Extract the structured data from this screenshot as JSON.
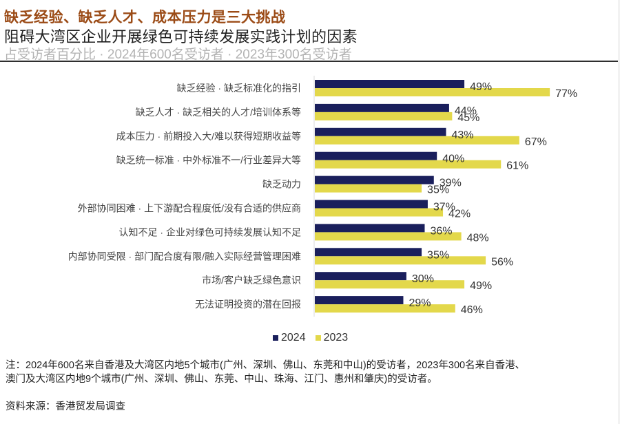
{
  "header": {
    "title": "缺乏经验、缺乏人才、成本压力是三大挑战",
    "subtitle": "阻碍大湾区企业开展绿色可持续发展实践计划的因素",
    "caption": "占受访者百分比 · 2024年600名受访者 · 2023年300名受访者"
  },
  "colors": {
    "title": "#9b4b16",
    "series_2024": "#1a1f5c",
    "series_2023": "#e3d84b",
    "axis": "#d9d9d9"
  },
  "chart_data": {
    "type": "bar",
    "orientation": "horizontal",
    "title": "阻碍大湾区企业开展绿色可持续发展实践计划的因素",
    "xlabel": "",
    "ylabel": "",
    "unit": "%",
    "xlim": [
      0,
      100
    ],
    "grid": false,
    "legend_position": "bottom-center",
    "categories": [
      "缺乏经验 · 缺乏标准化的指引",
      "缺乏人才 · 缺乏相关的人才/培训体系等",
      "成本压力 · 前期投入大/难以获得短期收益等",
      "缺乏统一标准 · 中外标准不一/行业差异大等",
      "缺乏动力",
      "外部协同困难 · 上下游配合程度低/没有合适的供应商",
      "认知不足 · 企业对绿色可持续发展认知不足",
      "内部协同受限 · 部门配合度有限/融入实际经营管理困难",
      "市场/客户缺乏绿色意识",
      "无法证明投资的潜在回报"
    ],
    "series": [
      {
        "name": "2024",
        "color": "#1a1f5c",
        "values": [
          49,
          44,
          43,
          40,
          39,
          37,
          36,
          35,
          30,
          29
        ]
      },
      {
        "name": "2023",
        "color": "#e3d84b",
        "values": [
          77,
          45,
          67,
          61,
          35,
          42,
          48,
          56,
          49,
          46
        ]
      }
    ]
  },
  "legend": [
    {
      "label": "2024",
      "color": "#1a1f5c"
    },
    {
      "label": "2023",
      "color": "#e3d84b"
    }
  ],
  "footer": {
    "note_lines": [
      "注：2024年600名来自香港及大湾区内地5个城市(广州、深圳、佛山、东莞和中山)的受访者，2023年300名来自香港、",
      "澳门及大湾区内地9个城市(广州、深圳、佛山、东莞、中山、珠海、江门、惠州和肇庆)的受访者。"
    ],
    "source": "资料来源：香港贸发局调查"
  }
}
